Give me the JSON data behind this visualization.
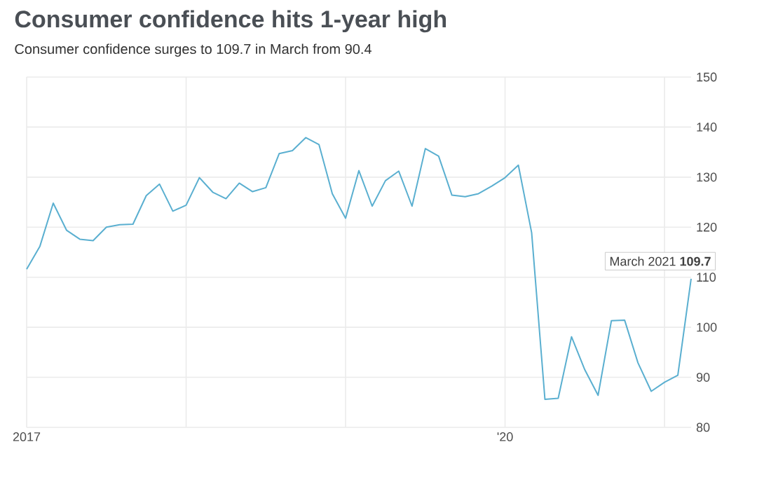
{
  "chart_data": {
    "type": "line",
    "title": "Consumer confidence hits 1-year high",
    "subtitle": "Consumer confidence surges to 109.7 in March from 90.4",
    "x": [
      "2017-01",
      "2017-02",
      "2017-03",
      "2017-04",
      "2017-05",
      "2017-06",
      "2017-07",
      "2017-08",
      "2017-09",
      "2017-10",
      "2017-11",
      "2017-12",
      "2018-01",
      "2018-02",
      "2018-03",
      "2018-04",
      "2018-05",
      "2018-06",
      "2018-07",
      "2018-08",
      "2018-09",
      "2018-10",
      "2018-11",
      "2018-12",
      "2019-01",
      "2019-02",
      "2019-03",
      "2019-04",
      "2019-05",
      "2019-06",
      "2019-07",
      "2019-08",
      "2019-09",
      "2019-10",
      "2019-11",
      "2019-12",
      "2020-01",
      "2020-02",
      "2020-03",
      "2020-04",
      "2020-05",
      "2020-06",
      "2020-07",
      "2020-08",
      "2020-09",
      "2020-10",
      "2020-11",
      "2020-12",
      "2021-01",
      "2021-02",
      "2021-03"
    ],
    "series": [
      {
        "color": "#5aafd0",
        "values": [
          111.6,
          116.2,
          124.8,
          119.4,
          117.6,
          117.3,
          120.0,
          120.5,
          120.6,
          126.3,
          128.6,
          123.2,
          124.4,
          129.9,
          127.0,
          125.7,
          128.8,
          127.1,
          127.9,
          134.7,
          135.3,
          137.9,
          136.5,
          126.7,
          121.8,
          131.3,
          124.2,
          129.3,
          131.2,
          124.2,
          135.7,
          134.2,
          126.4,
          126.1,
          126.7,
          128.2,
          129.9,
          132.4,
          118.9,
          85.6,
          85.8,
          98.1,
          91.5,
          86.4,
          101.3,
          101.4,
          92.9,
          87.2,
          89.0,
          90.4,
          109.7
        ]
      }
    ],
    "xlim": [
      "2017-01",
      "2021-03"
    ],
    "xticks": [
      {
        "value": "2017-01",
        "label": "2017"
      },
      {
        "value": "2018-01",
        "label": null
      },
      {
        "value": "2019-01",
        "label": null
      },
      {
        "value": "2020-01",
        "label": "'20"
      },
      {
        "value": "2021-01",
        "label": null
      }
    ],
    "ylim": [
      80,
      150
    ],
    "yticks": [
      80,
      90,
      100,
      110,
      120,
      130,
      140,
      150
    ],
    "grid": true,
    "annotations": [
      {
        "text": "March 2021 **109.7**",
        "x": "2021-03",
        "y": 109.7
      }
    ]
  }
}
